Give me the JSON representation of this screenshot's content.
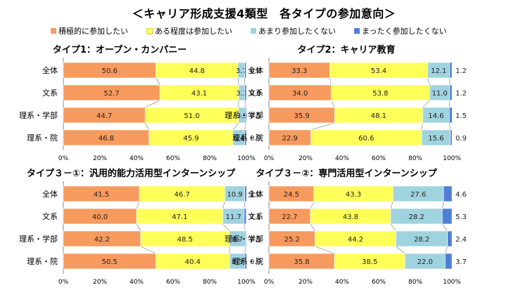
{
  "main_title": "＜キャリア形成支援4類型　各タイプの参加意向＞",
  "legend": [
    "積極的に参加したい",
    "ある程度は参加したい",
    "あまり参加したくない",
    "まったく参加したくない"
  ],
  "colors": [
    "#f79a5e",
    "#ffff5a",
    "#9fd3df",
    "#4f7fd4"
  ],
  "chart_data": [
    {
      "type": "bar",
      "stacked": true,
      "orientation": "horizontal",
      "title": "タイプ1：オープン・カンパニー",
      "categories": [
        "全体",
        "文系",
        "理系・学部",
        "理系・院"
      ],
      "series": [
        {
          "name": "積極的に参加したい",
          "values": [
            50.6,
            52.7,
            44.7,
            46.8
          ]
        },
        {
          "name": "ある程度は参加したい",
          "values": [
            44.8,
            43.1,
            51.0,
            45.9
          ]
        },
        {
          "name": "あまり参加したくない",
          "values": [
            3.7,
            3.3,
            3.9,
            6.4
          ]
        },
        {
          "name": "まったく参加したくない",
          "values": [
            0.8,
            0.9,
            0.5,
            0.9
          ]
        }
      ],
      "xlim": [
        0,
        100
      ],
      "xticks": [
        "0%",
        "20%",
        "40%",
        "60%",
        "80%",
        "100%"
      ]
    },
    {
      "type": "bar",
      "stacked": true,
      "orientation": "horizontal",
      "title": "タイプ2：キャリア教育",
      "categories": [
        "全体",
        "文系",
        "理系・学部",
        "理系・院"
      ],
      "series": [
        {
          "name": "積極的に参加したい",
          "values": [
            33.3,
            34.0,
            35.9,
            22.9
          ]
        },
        {
          "name": "ある程度は参加したい",
          "values": [
            53.4,
            53.8,
            48.1,
            60.6
          ]
        },
        {
          "name": "あまり参加したくない",
          "values": [
            12.1,
            11.0,
            14.6,
            15.6
          ]
        },
        {
          "name": "まったく参加したくない",
          "values": [
            1.2,
            1.2,
            1.5,
            0.9
          ]
        }
      ],
      "xlim": [
        0,
        100
      ],
      "xticks": [
        "0%",
        "20%",
        "40%",
        "60%",
        "80%",
        "100%"
      ]
    },
    {
      "type": "bar",
      "stacked": true,
      "orientation": "horizontal",
      "title": "タイプ３－①：汎用的能力活用型インターンシップ",
      "categories": [
        "全体",
        "文系",
        "理系・学部",
        "理系・院"
      ],
      "series": [
        {
          "name": "積極的に参加したい",
          "values": [
            41.5,
            40.0,
            42.2,
            50.5
          ]
        },
        {
          "name": "ある程度は参加したい",
          "values": [
            46.7,
            47.1,
            48.5,
            40.4
          ]
        },
        {
          "name": "あまり参加したくない",
          "values": [
            10.9,
            11.7,
            8.7,
            8.3
          ]
        },
        {
          "name": "まったく参加したくない",
          "values": [
            1.0,
            1.1,
            0.5,
            0.9
          ]
        }
      ],
      "xlim": [
        0,
        100
      ],
      "xticks": [
        "0%",
        "20%",
        "40%",
        "60%",
        "80%",
        "100%"
      ]
    },
    {
      "type": "bar",
      "stacked": true,
      "orientation": "horizontal",
      "title": "タイプ３－②：専門活用型インターンシップ",
      "categories": [
        "全体",
        "文系",
        "理系・学部",
        "理系・院"
      ],
      "series": [
        {
          "name": "積極的に参加したい",
          "values": [
            24.5,
            22.7,
            25.2,
            35.8
          ]
        },
        {
          "name": "ある程度は参加したい",
          "values": [
            43.3,
            43.8,
            44.2,
            38.5
          ]
        },
        {
          "name": "あまり参加したくない",
          "values": [
            27.6,
            28.2,
            28.2,
            22.0
          ]
        },
        {
          "name": "まったく参加したくない",
          "values": [
            4.6,
            5.3,
            2.4,
            3.7
          ]
        }
      ],
      "xlim": [
        0,
        100
      ],
      "xticks": [
        "0%",
        "20%",
        "40%",
        "60%",
        "80%",
        "100%"
      ]
    }
  ]
}
